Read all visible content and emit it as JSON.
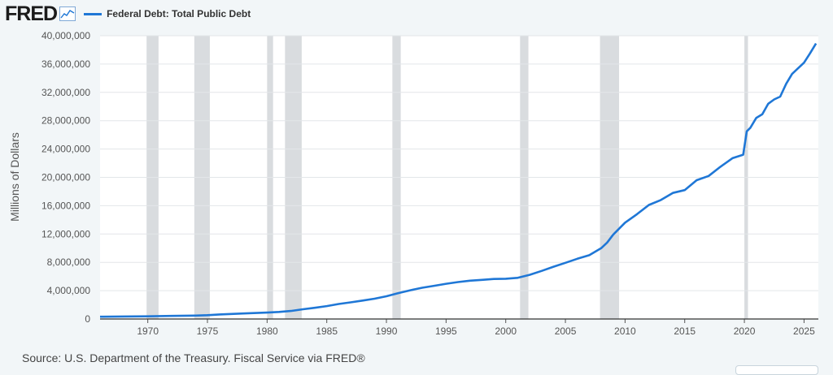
{
  "header": {
    "logo": "FRED",
    "logo_icon": "line-chart-icon",
    "series_color": "#1f77d6"
  },
  "source_text": "Source: U.S. Department of the Treasury. Fiscal Service via FRED®",
  "chart_data": {
    "type": "line",
    "title": "",
    "xlabel": "",
    "ylabel": "Millions of Dollars",
    "xlim": [
      1966.0,
      2026.2
    ],
    "ylim": [
      0,
      40000000
    ],
    "grid": true,
    "legend_position": "top-left",
    "yticks": [
      0,
      4000000,
      8000000,
      12000000,
      16000000,
      20000000,
      24000000,
      28000000,
      32000000,
      36000000,
      40000000
    ],
    "ytick_labels": [
      "0",
      "4,000,000",
      "8,000,000",
      "12,000,000",
      "16,000,000",
      "20,000,000",
      "24,000,000",
      "28,000,000",
      "32,000,000",
      "36,000,000",
      "40,000,000"
    ],
    "xticks": [
      1970,
      1975,
      1980,
      1985,
      1990,
      1995,
      2000,
      2005,
      2010,
      2015,
      2020,
      2025
    ],
    "xtick_labels": [
      "1970",
      "1975",
      "1980",
      "1985",
      "1990",
      "1995",
      "2000",
      "2005",
      "2010",
      "2015",
      "2020",
      "2025"
    ],
    "recessions": [
      [
        1969.9,
        1970.9
      ],
      [
        1973.9,
        1975.2
      ],
      [
        1980.0,
        1980.5
      ],
      [
        1981.5,
        1982.9
      ],
      [
        1990.5,
        1991.2
      ],
      [
        2001.2,
        2001.9
      ],
      [
        2007.9,
        2009.5
      ],
      [
        2020.0,
        2020.3
      ]
    ],
    "series": [
      {
        "name": "Federal Debt: Total Public Debt",
        "color": "#1f77d6",
        "x": [
          1966,
          1968,
          1970,
          1972,
          1974,
          1975,
          1976,
          1978,
          1980,
          1981,
          1982,
          1983,
          1984,
          1985,
          1986,
          1987,
          1988,
          1989,
          1990,
          1991,
          1992,
          1993,
          1994,
          1995,
          1996,
          1997,
          1998,
          1999,
          2000,
          2001,
          2002,
          2003,
          2004,
          2005,
          2006,
          2007,
          2008,
          2008.5,
          2009,
          2010,
          2011,
          2012,
          2013,
          2014,
          2015,
          2016,
          2017,
          2018,
          2019,
          2019.9,
          2020.2,
          2020.5,
          2021,
          2021.5,
          2022,
          2022.5,
          2023,
          2023.5,
          2024,
          2024.5,
          2025,
          2025.5,
          2026.0
        ],
        "y": [
          320000,
          350000,
          380000,
          430000,
          480000,
          540000,
          640000,
          780000,
          910000,
          1000000,
          1140000,
          1380000,
          1580000,
          1820000,
          2120000,
          2350000,
          2600000,
          2860000,
          3210000,
          3660000,
          4060000,
          4410000,
          4690000,
          4970000,
          5220000,
          5410000,
          5530000,
          5650000,
          5680000,
          5810000,
          6230000,
          6780000,
          7380000,
          7930000,
          8510000,
          9010000,
          10000000,
          10800000,
          11900000,
          13600000,
          14800000,
          16100000,
          16800000,
          17800000,
          18200000,
          19600000,
          20200000,
          21500000,
          22700000,
          23200000,
          26500000,
          27000000,
          28400000,
          28900000,
          30400000,
          31000000,
          31400000,
          33200000,
          34600000,
          35400000,
          36200000,
          37500000,
          38900000
        ]
      }
    ]
  }
}
